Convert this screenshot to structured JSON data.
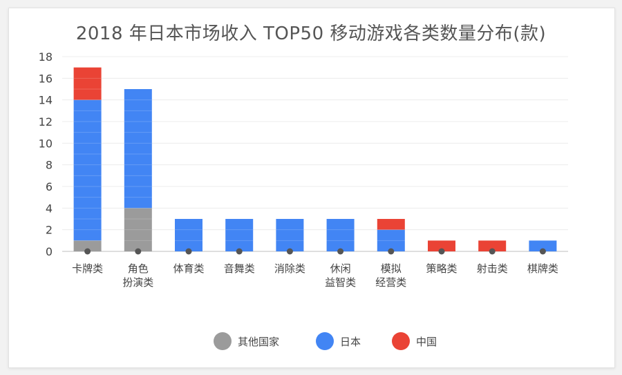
{
  "chart_data": {
    "type": "bar",
    "stacked": true,
    "title": "2018 年日本市场收入 TOP50 移动游戏各类数量分布(款)",
    "xlabel": "",
    "ylabel": "",
    "ylim": [
      0,
      18
    ],
    "yticks": [
      0,
      2,
      4,
      6,
      8,
      10,
      12,
      14,
      16,
      18
    ],
    "grid": true,
    "legend_position": "bottom",
    "categories": [
      [
        "卡牌类"
      ],
      [
        "角色",
        "扮演类"
      ],
      [
        "体育类"
      ],
      [
        "音舞类"
      ],
      [
        "消除类"
      ],
      [
        "休闲",
        "益智类"
      ],
      [
        "模拟",
        "经营类"
      ],
      [
        "策略类"
      ],
      [
        "射击类"
      ],
      [
        "棋牌类"
      ]
    ],
    "series": [
      {
        "name": "其他国家",
        "color": "#9b9b9b",
        "values": [
          1,
          4,
          0,
          0,
          0,
          0,
          0,
          0,
          0,
          0
        ]
      },
      {
        "name": "日本",
        "color": "#4285f4",
        "values": [
          13,
          11,
          3,
          3,
          3,
          3,
          2,
          0,
          0,
          1
        ]
      },
      {
        "name": "中国",
        "color": "#ea4335",
        "values": [
          3,
          0,
          0,
          0,
          0,
          0,
          1,
          1,
          1,
          0
        ]
      }
    ]
  }
}
